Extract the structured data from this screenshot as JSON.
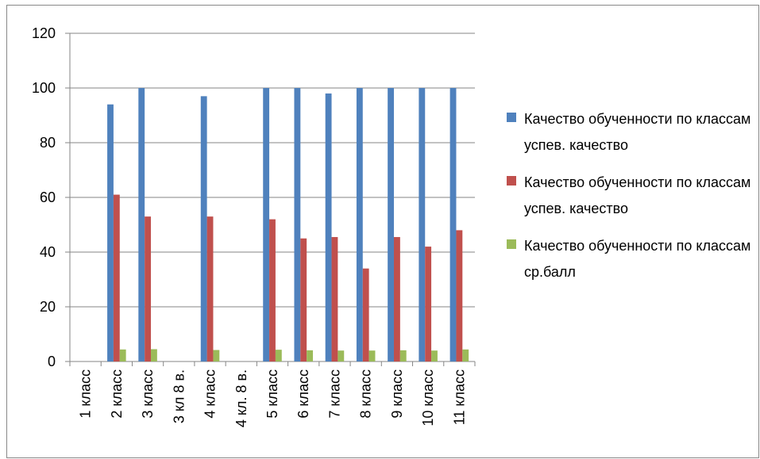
{
  "chart_data": {
    "type": "bar",
    "categories": [
      "1 класс",
      "2 класс",
      "3 класс",
      "3 кл 8 в.",
      "4 класс",
      "4 кл. 8 в.",
      "5 класс",
      "6 класс",
      "7 класс",
      "8 класс",
      "9 класс",
      "10 класс",
      "11 класс"
    ],
    "series": [
      {
        "name": "Качество обученности по классам успев. качество",
        "color": "#4f81bd",
        "values": [
          null,
          94,
          100,
          null,
          97,
          null,
          100,
          100,
          98,
          100,
          100,
          100,
          100
        ]
      },
      {
        "name": "Качество обученности по классам успев. качество",
        "color": "#c0504d",
        "values": [
          null,
          61,
          53,
          null,
          53,
          null,
          52,
          45,
          45.5,
          34,
          45.5,
          42,
          48
        ]
      },
      {
        "name": "Качество обученности по классам ср.балл",
        "color": "#9bbb59",
        "values": [
          null,
          4.4,
          4.5,
          null,
          4.2,
          null,
          4.3,
          4.1,
          4,
          4,
          4.1,
          4,
          4.4
        ]
      }
    ],
    "ylim": [
      0,
      120
    ],
    "yticks": [
      0,
      20,
      40,
      60,
      80,
      100,
      120
    ],
    "grid": true,
    "legend": "right"
  }
}
